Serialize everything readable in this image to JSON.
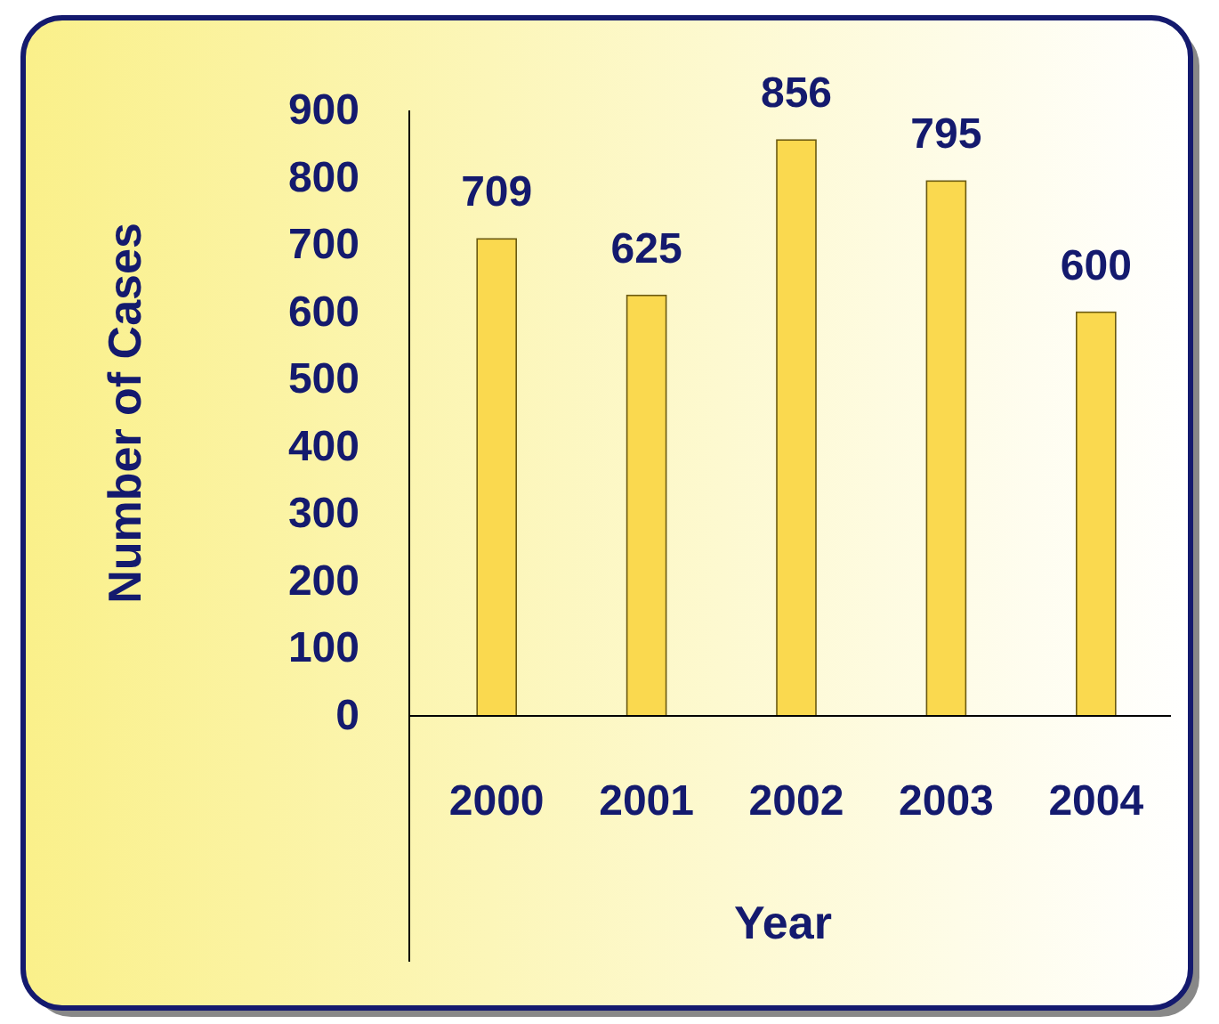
{
  "chart_data": {
    "type": "bar",
    "xlabel": "Year",
    "ylabel": "Number of Cases",
    "categories": [
      "2000",
      "2001",
      "2002",
      "2003",
      "2004"
    ],
    "values": [
      709,
      625,
      856,
      795,
      600
    ],
    "color": "#fad94f",
    "ylim": [
      0,
      900
    ],
    "yticks": [
      0,
      100,
      200,
      300,
      400,
      500,
      600,
      700,
      800,
      900
    ],
    "data_labels": true,
    "grid": false
  }
}
